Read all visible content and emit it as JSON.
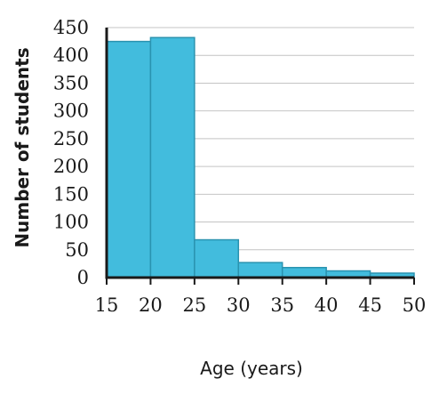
{
  "chart_data": {
    "type": "bar",
    "bins": [
      {
        "start": 15,
        "end": 20,
        "value": 425
      },
      {
        "start": 20,
        "end": 25,
        "value": 432
      },
      {
        "start": 25,
        "end": 30,
        "value": 68
      },
      {
        "start": 30,
        "end": 35,
        "value": 27
      },
      {
        "start": 35,
        "end": 40,
        "value": 18
      },
      {
        "start": 40,
        "end": 45,
        "value": 12
      },
      {
        "start": 45,
        "end": 50,
        "value": 8
      }
    ],
    "xlabel": "Age (years)",
    "ylabel": "Number of students",
    "xlim": [
      15,
      50
    ],
    "ylim": [
      0,
      450
    ],
    "xticks": [
      15,
      20,
      25,
      30,
      35,
      40,
      45,
      50
    ],
    "yticks": [
      0,
      50,
      100,
      150,
      200,
      250,
      300,
      350,
      400,
      450
    ],
    "grid": "horizontal",
    "colors": {
      "bar_fill": "#42bcdd",
      "bar_edge": "#2a93b0"
    }
  }
}
